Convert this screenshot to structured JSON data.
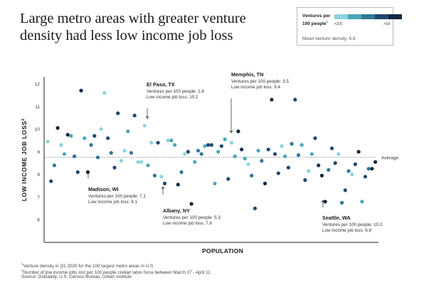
{
  "title": "Large metro areas with greater venture density had less low income job loss",
  "legend": {
    "heading": "Ventures per 100 people",
    "heading_sup": "1",
    "low_label": "<3.5",
    "high_label": ">10",
    "swatch_colors": [
      "#8fd3dc",
      "#4aa7b9",
      "#2e7898",
      "#1d4a70",
      "#0f2740"
    ],
    "mean_text": "Mean venture density: 6.6"
  },
  "footnotes": [
    {
      "sup": "1",
      "text": "Venture density in Q1 2020 for the 100 largest metro areas in U.S."
    },
    {
      "sup": "2",
      "text": "Number of low income jobs lost per 100 people civilian labor force between March 27 - April 11"
    },
    {
      "sup": "",
      "text": "Source: GoDaddy, U.S. Census Bureau, Urban Institute"
    }
  ],
  "chart_data": {
    "type": "scatter",
    "xlabel": "POPULATION",
    "ylabel": "LOW INCOME JOB LOSS",
    "ylabel_sup": "2",
    "y_ticks": [
      6,
      7,
      8,
      9,
      10,
      11,
      12
    ],
    "ylim": [
      5,
      12.3
    ],
    "x_ticks_shown": false,
    "average_label": "Average",
    "average_value": 8.75,
    "color_scale": {
      "variable": "Ventures per 100 people",
      "low": "<3.5",
      "high": ">10"
    },
    "annotations": [
      {
        "city": "El Paso, TX",
        "line1": "Ventures per 100 people: 1.8",
        "line2": "Low income job loss: 10.2",
        "venture_density": 1.8,
        "job_loss": 10.2
      },
      {
        "city": "Memphis, TN",
        "line1": "Ventures per 100 people: 3.5",
        "line2": "Low income job loss: 9.4",
        "venture_density": 3.5,
        "job_loss": 9.4
      },
      {
        "city": "Madison, WI",
        "line1": "Ventures per 100 people: 7.1",
        "line2": "Low income job loss: 8.1",
        "venture_density": 7.1,
        "job_loss": 8.1
      },
      {
        "city": "Albany, NY",
        "line1": "Ventures per 100 people: 5.3",
        "line2": "Low income job loss: 7.6",
        "venture_density": 5.3,
        "job_loss": 7.6
      },
      {
        "city": "Seattle, WA",
        "line1": "Ventures per 100 people: 10.2",
        "line2": "Low income job loss: 6.8",
        "venture_density": 10.2,
        "job_loss": 6.8
      }
    ],
    "points": [
      {
        "x": 1,
        "y": 9.45,
        "c": 0
      },
      {
        "x": 2,
        "y": 7.7,
        "c": 3
      },
      {
        "x": 3,
        "y": 8.4,
        "c": 2
      },
      {
        "x": 4,
        "y": 10.05,
        "c": 4
      },
      {
        "x": 5,
        "y": 9.3,
        "c": 0
      },
      {
        "x": 6,
        "y": 8.9,
        "c": 1
      },
      {
        "x": 7,
        "y": 9.75,
        "c": 4
      },
      {
        "x": 8,
        "y": 9.7,
        "c": 1
      },
      {
        "x": 9,
        "y": 8.8,
        "c": 2
      },
      {
        "x": 10,
        "y": 8.1,
        "c": 3
      },
      {
        "x": 11,
        "y": 11.7,
        "c": 4
      },
      {
        "x": 12,
        "y": 9.6,
        "c": 1
      },
      {
        "x": 13,
        "y": 8.1,
        "c": 4
      },
      {
        "x": 14,
        "y": 9.3,
        "c": 2
      },
      {
        "x": 15,
        "y": 9.7,
        "c": 3
      },
      {
        "x": 16,
        "y": 8.75,
        "c": 2
      },
      {
        "x": 17,
        "y": 10.0,
        "c": 0
      },
      {
        "x": 18,
        "y": 11.6,
        "c": 0
      },
      {
        "x": 19,
        "y": 9.6,
        "c": 3
      },
      {
        "x": 20,
        "y": 8.95,
        "c": 2
      },
      {
        "x": 21,
        "y": 8.3,
        "c": 3
      },
      {
        "x": 22,
        "y": 10.7,
        "c": 3
      },
      {
        "x": 23,
        "y": 8.6,
        "c": 0
      },
      {
        "x": 24,
        "y": 9.05,
        "c": 0
      },
      {
        "x": 25,
        "y": 9.9,
        "c": 1
      },
      {
        "x": 26,
        "y": 8.95,
        "c": 2
      },
      {
        "x": 27,
        "y": 10.6,
        "c": 3
      },
      {
        "x": 28,
        "y": 8.55,
        "c": 0
      },
      {
        "x": 29,
        "y": 8.55,
        "c": 0
      },
      {
        "x": 30,
        "y": 10.15,
        "c": 0
      },
      {
        "x": 31,
        "y": 8.4,
        "c": 1
      },
      {
        "x": 32,
        "y": 9.4,
        "c": 0
      },
      {
        "x": 33,
        "y": 7.95,
        "c": 2
      },
      {
        "x": 34,
        "y": 9.4,
        "c": 3
      },
      {
        "x": 35,
        "y": 7.9,
        "c": 0
      },
      {
        "x": 36,
        "y": 7.6,
        "c": 3
      },
      {
        "x": 37,
        "y": 9.5,
        "c": 0
      },
      {
        "x": 38,
        "y": 9.5,
        "c": 1
      },
      {
        "x": 39,
        "y": 9.3,
        "c": 1
      },
      {
        "x": 40,
        "y": 7.55,
        "c": 4
      },
      {
        "x": 41,
        "y": 8.1,
        "c": 2
      },
      {
        "x": 42,
        "y": 8.9,
        "c": 0
      },
      {
        "x": 43,
        "y": 9.0,
        "c": 3
      },
      {
        "x": 44,
        "y": 6.7,
        "c": 4
      },
      {
        "x": 45,
        "y": 8.55,
        "c": 1
      },
      {
        "x": 46,
        "y": 9.05,
        "c": 2
      },
      {
        "x": 47,
        "y": 8.9,
        "c": 2
      },
      {
        "x": 48,
        "y": 9.25,
        "c": 1
      },
      {
        "x": 49,
        "y": 9.3,
        "c": 3
      },
      {
        "x": 50,
        "y": 9.3,
        "c": 3
      },
      {
        "x": 51,
        "y": 7.6,
        "c": 1
      },
      {
        "x": 52,
        "y": 9.0,
        "c": 1
      },
      {
        "x": 53,
        "y": 9.25,
        "c": 3
      },
      {
        "x": 54,
        "y": 9.55,
        "c": 1
      },
      {
        "x": 55,
        "y": 7.8,
        "c": 3
      },
      {
        "x": 56,
        "y": 9.4,
        "c": 0
      },
      {
        "x": 57,
        "y": 8.8,
        "c": 1
      },
      {
        "x": 58,
        "y": 9.9,
        "c": 4
      },
      {
        "x": 59,
        "y": 9.1,
        "c": 4
      },
      {
        "x": 60,
        "y": 8.7,
        "c": 1
      },
      {
        "x": 61,
        "y": 8.45,
        "c": 0
      },
      {
        "x": 62,
        "y": 7.95,
        "c": 2
      },
      {
        "x": 63,
        "y": 6.5,
        "c": 3
      },
      {
        "x": 64,
        "y": 9.05,
        "c": 1
      },
      {
        "x": 65,
        "y": 8.6,
        "c": 2
      },
      {
        "x": 66,
        "y": 7.6,
        "c": 4
      },
      {
        "x": 67,
        "y": 9.1,
        "c": 3
      },
      {
        "x": 68,
        "y": 11.3,
        "c": 4
      },
      {
        "x": 69,
        "y": 8.9,
        "c": 3
      },
      {
        "x": 70,
        "y": 8.05,
        "c": 3
      },
      {
        "x": 71,
        "y": 9.25,
        "c": 0
      },
      {
        "x": 72,
        "y": 8.8,
        "c": 1
      },
      {
        "x": 73,
        "y": 8.3,
        "c": 3
      },
      {
        "x": 74,
        "y": 9.35,
        "c": 2
      },
      {
        "x": 75,
        "y": 11.3,
        "c": 3
      },
      {
        "x": 76,
        "y": 8.85,
        "c": 2
      },
      {
        "x": 77,
        "y": 9.3,
        "c": 1
      },
      {
        "x": 78,
        "y": 7.75,
        "c": 3
      },
      {
        "x": 79,
        "y": 8.15,
        "c": 0
      },
      {
        "x": 80,
        "y": 8.9,
        "c": 1
      },
      {
        "x": 81,
        "y": 9.6,
        "c": 3
      },
      {
        "x": 82,
        "y": 8.4,
        "c": 4
      },
      {
        "x": 83,
        "y": 7.95,
        "c": 4
      },
      {
        "x": 84,
        "y": 6.8,
        "c": 4
      },
      {
        "x": 85,
        "y": 8.2,
        "c": 2
      },
      {
        "x": 86,
        "y": 9.15,
        "c": 3
      },
      {
        "x": 87,
        "y": 8.5,
        "c": 3
      },
      {
        "x": 88,
        "y": 8.9,
        "c": 0
      },
      {
        "x": 89,
        "y": 6.75,
        "c": 2
      },
      {
        "x": 90,
        "y": 7.3,
        "c": 3
      },
      {
        "x": 91,
        "y": 8.15,
        "c": 2
      },
      {
        "x": 92,
        "y": 8.0,
        "c": 0
      },
      {
        "x": 93,
        "y": 8.45,
        "c": 3
      },
      {
        "x": 94,
        "y": 9.0,
        "c": 4
      },
      {
        "x": 95,
        "y": 6.8,
        "c": 1
      },
      {
        "x": 96,
        "y": 7.9,
        "c": 3
      },
      {
        "x": 97,
        "y": 8.25,
        "c": 2
      },
      {
        "x": 98,
        "y": 8.25,
        "c": 4
      },
      {
        "x": 99,
        "y": 8.55,
        "c": 4
      }
    ]
  }
}
